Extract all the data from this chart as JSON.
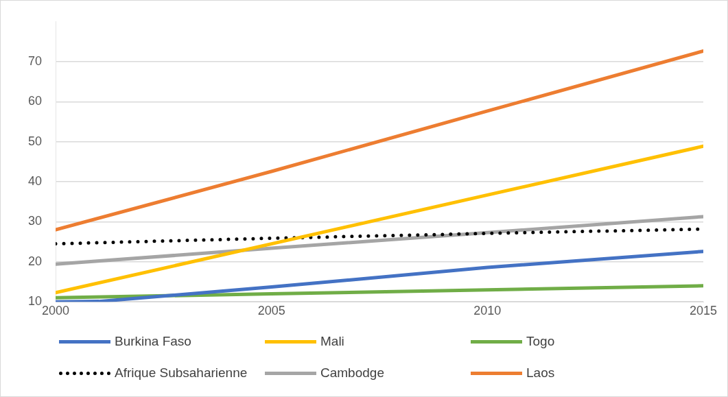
{
  "chart_data": {
    "type": "line",
    "x": [
      2000,
      2005,
      2010,
      2015
    ],
    "xlim": [
      2000,
      2015
    ],
    "xticks": [
      2000,
      2005,
      2010,
      2015
    ],
    "ylim": [
      10,
      80
    ],
    "yticks": [
      10,
      20,
      30,
      40,
      50,
      60,
      70
    ],
    "grid": "y",
    "legend": "bottom",
    "marker": "none",
    "series": [
      {
        "name": "Burkina Faso",
        "color": "#4472c4",
        "x": [
          2000,
          2001,
          2005,
          2010,
          2015
        ],
        "values": [
          10,
          10.1,
          13.7,
          18.6,
          22.6
        ]
      },
      {
        "name": "Mali",
        "color": "#ffc000",
        "values": [
          12.3,
          24.5,
          36.7,
          48.9
        ]
      },
      {
        "name": "Togo",
        "color": "#70ad47",
        "values": [
          11,
          12,
          13,
          14
        ]
      },
      {
        "name": "Afrique Subsaharienne",
        "color": "#000000",
        "line_style": "dotted",
        "values": [
          24.5,
          25.9,
          27.1,
          28.2
        ]
      },
      {
        "name": "Cambodge",
        "color": "#a5a5a5",
        "values": [
          19.4,
          23.4,
          27.3,
          31.3
        ]
      },
      {
        "name": "Laos",
        "color": "#ed7d31",
        "values": [
          28,
          42.6,
          57.7,
          72.7
        ]
      }
    ]
  }
}
